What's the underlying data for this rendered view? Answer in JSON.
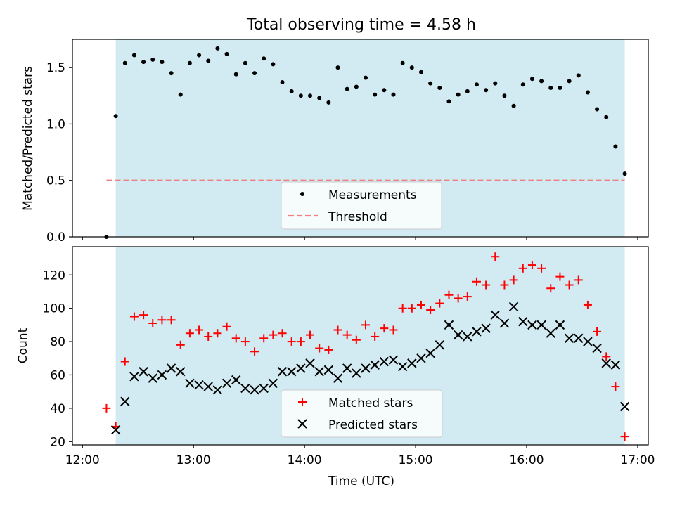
{
  "title": "Total observing time = 4.58 h",
  "chart_data": [
    {
      "type": "scatter",
      "ylabel": "Matched/Predicted stars",
      "xlim": [
        "12:00",
        "17:00"
      ],
      "ylim": [
        0,
        1.75
      ],
      "yticks": [
        "0.0",
        "0.5",
        "1.0",
        "1.5"
      ],
      "xticks": [
        "12:00",
        "13:00",
        "14:00",
        "15:00",
        "16:00",
        "17:00"
      ],
      "tick_label_visible": false,
      "shaded_region": {
        "x": [
          "12:18",
          "16:53"
        ],
        "color": "#add8e6"
      },
      "threshold": {
        "value": 0.5,
        "x": [
          "12:13",
          "16:53"
        ],
        "color": "#f08080",
        "style": "dashed",
        "name": "Threshold"
      },
      "legend": {
        "position": "lower center",
        "entries": [
          "Measurements",
          "Threshold"
        ]
      },
      "series": [
        {
          "name": "Measurements",
          "marker": "dot",
          "color": "#000000",
          "x": [
            "12:13",
            "12:18",
            "12:23",
            "12:28",
            "12:33",
            "12:38",
            "12:43",
            "12:48",
            "12:53",
            "12:58",
            "13:03",
            "13:08",
            "13:13",
            "13:18",
            "13:23",
            "13:28",
            "13:33",
            "13:38",
            "13:43",
            "13:48",
            "13:53",
            "13:58",
            "14:03",
            "14:08",
            "14:13",
            "14:18",
            "14:23",
            "14:28",
            "14:33",
            "14:38",
            "14:43",
            "14:48",
            "14:53",
            "14:58",
            "15:03",
            "15:08",
            "15:13",
            "15:18",
            "15:23",
            "15:28",
            "15:33",
            "15:38",
            "15:43",
            "15:48",
            "15:53",
            "15:58",
            "16:03",
            "16:08",
            "16:13",
            "16:18",
            "16:23",
            "16:28",
            "16:33",
            "16:38",
            "16:43",
            "16:48",
            "16:53"
          ],
          "y": [
            0.0,
            1.07,
            1.54,
            1.61,
            1.55,
            1.57,
            1.55,
            1.45,
            1.26,
            1.54,
            1.61,
            1.56,
            1.67,
            1.62,
            1.44,
            1.54,
            1.45,
            1.58,
            1.53,
            1.37,
            1.29,
            1.25,
            1.25,
            1.23,
            1.19,
            1.5,
            1.31,
            1.33,
            1.41,
            1.26,
            1.3,
            1.26,
            1.54,
            1.5,
            1.46,
            1.36,
            1.32,
            1.2,
            1.26,
            1.29,
            1.35,
            1.3,
            1.36,
            1.25,
            1.16,
            1.35,
            1.4,
            1.38,
            1.32,
            1.32,
            1.38,
            1.43,
            1.28,
            1.13,
            1.06,
            0.8,
            0.56
          ]
        }
      ]
    },
    {
      "type": "scatter",
      "xlabel": "Time (UTC)",
      "ylabel": "Count",
      "xlim": [
        "12:00",
        "17:00"
      ],
      "ylim": [
        18,
        137
      ],
      "yticks": [
        "20",
        "40",
        "60",
        "80",
        "100",
        "120"
      ],
      "xticks": [
        "12:00",
        "13:00",
        "14:00",
        "15:00",
        "16:00",
        "17:00"
      ],
      "shaded_region": {
        "x": [
          "12:18",
          "16:53"
        ],
        "color": "#add8e6"
      },
      "legend": {
        "position": "lower center",
        "entries": [
          "Matched stars",
          "Predicted stars"
        ]
      },
      "x": [
        "12:13",
        "12:18",
        "12:23",
        "12:28",
        "12:33",
        "12:38",
        "12:43",
        "12:48",
        "12:53",
        "12:58",
        "13:03",
        "13:08",
        "13:13",
        "13:18",
        "13:23",
        "13:28",
        "13:33",
        "13:38",
        "13:43",
        "13:48",
        "13:53",
        "13:58",
        "14:03",
        "14:08",
        "14:13",
        "14:18",
        "14:23",
        "14:28",
        "14:33",
        "14:38",
        "14:43",
        "14:48",
        "14:53",
        "14:58",
        "15:03",
        "15:08",
        "15:13",
        "15:18",
        "15:23",
        "15:28",
        "15:33",
        "15:38",
        "15:43",
        "15:48",
        "15:53",
        "15:58",
        "16:03",
        "16:08",
        "16:13",
        "16:18",
        "16:23",
        "16:28",
        "16:33",
        "16:38",
        "16:43",
        "16:48",
        "16:53"
      ],
      "series": [
        {
          "name": "Matched stars",
          "marker": "plus",
          "color": "#ff0000",
          "values": [
            40,
            29,
            68,
            95,
            96,
            91,
            93,
            93,
            78,
            85,
            87,
            83,
            85,
            89,
            82,
            80,
            74,
            82,
            84,
            85,
            80,
            80,
            84,
            76,
            75,
            87,
            84,
            81,
            90,
            83,
            88,
            87,
            100,
            100,
            102,
            99,
            103,
            108,
            106,
            107,
            116,
            114,
            131,
            114,
            117,
            124,
            126,
            124,
            112,
            119,
            114,
            117,
            102,
            86,
            71,
            53,
            23
          ]
        },
        {
          "name": "Predicted stars",
          "marker": "x",
          "color": "#000000",
          "values": [
            null,
            27,
            44,
            59,
            62,
            58,
            60,
            64,
            62,
            55,
            54,
            53,
            51,
            55,
            57,
            52,
            51,
            52,
            55,
            62,
            62,
            64,
            67,
            62,
            63,
            58,
            64,
            61,
            64,
            66,
            68,
            69,
            65,
            67,
            70,
            73,
            78,
            90,
            84,
            83,
            86,
            88,
            96,
            91,
            101,
            92,
            90,
            90,
            85,
            90,
            82,
            82,
            80,
            76,
            67,
            66,
            41
          ]
        }
      ]
    }
  ]
}
